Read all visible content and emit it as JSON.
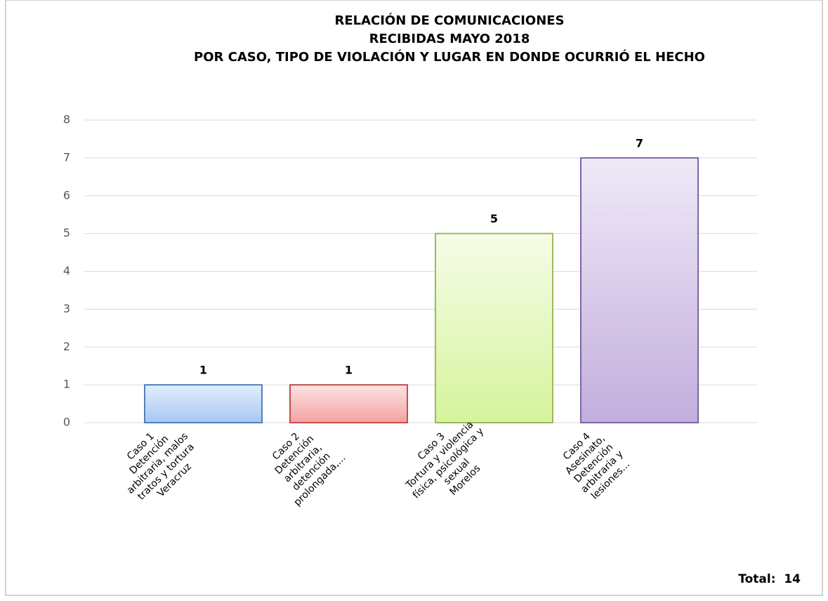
{
  "chart_data": {
    "type": "bar",
    "title": [
      "RELACIÓN DE COMUNICACIONES",
      "RECIBIDAS MAYO 2018",
      "POR CASO, TIPO DE VIOLACIÓN Y LUGAR EN DONDE OCURRIÓ EL HECHO"
    ],
    "categories": [
      [
        "Caso 1",
        "Detención",
        "arbitraria, malos",
        "tratos y tortura",
        "Veracruz"
      ],
      [
        "Caso 2",
        "Detención",
        "arbitraria,",
        "detención",
        "prolongada,..."
      ],
      [
        "Caso 3",
        "Tortura y violencia",
        "física, psicológica y",
        "sexual",
        "Morelos"
      ],
      [
        "Caso 4",
        "Asesinato,",
        "Detención",
        "arbitraria y",
        "lesiones..."
      ]
    ],
    "values": [
      1,
      1,
      5,
      7
    ],
    "colors": [
      "#4f81bd",
      "#c0504d",
      "#9bbb59",
      "#8064a2"
    ],
    "fill_colors": [
      [
        "#e3eefc",
        "#a7c6f3"
      ],
      [
        "#fde3e3",
        "#f3a2a2"
      ],
      [
        "#f6fce9",
        "#d6f49c"
      ],
      [
        "#f0e9f8",
        "#c2aedd"
      ]
    ],
    "ylim": [
      0,
      8
    ],
    "yticks": [
      0,
      1,
      2,
      3,
      4,
      5,
      6,
      7,
      8
    ],
    "grid": true,
    "annotation": "Total:  14"
  }
}
